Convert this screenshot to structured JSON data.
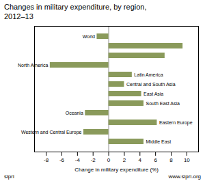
{
  "chart_data": {
    "type": "bar",
    "orientation": "horizontal",
    "title": "Changes in military expenditure, by region,\n2012–13",
    "xlabel": "Change in military expenditure (%)",
    "categories": [
      "World",
      null,
      null,
      "North America",
      "Latin America",
      "Central and South Asia",
      "East Asia",
      "South East Asia",
      "Oceania",
      "Eastern Europe",
      "Western and Central Europe",
      "Middle East"
    ],
    "values": [
      -1.5,
      9.5,
      7.2,
      -7.5,
      3.0,
      2.0,
      4.2,
      4.5,
      -3.0,
      6.2,
      -3.2,
      4.5
    ],
    "color": "#8a9a5b",
    "xlim": [
      -9.5,
      11.5
    ],
    "xticks": [
      -8,
      -6,
      -4,
      -2,
      0,
      2,
      4,
      6,
      8,
      10
    ],
    "grid": false,
    "annotations": [
      "sipri",
      "www.sipri.org"
    ]
  }
}
